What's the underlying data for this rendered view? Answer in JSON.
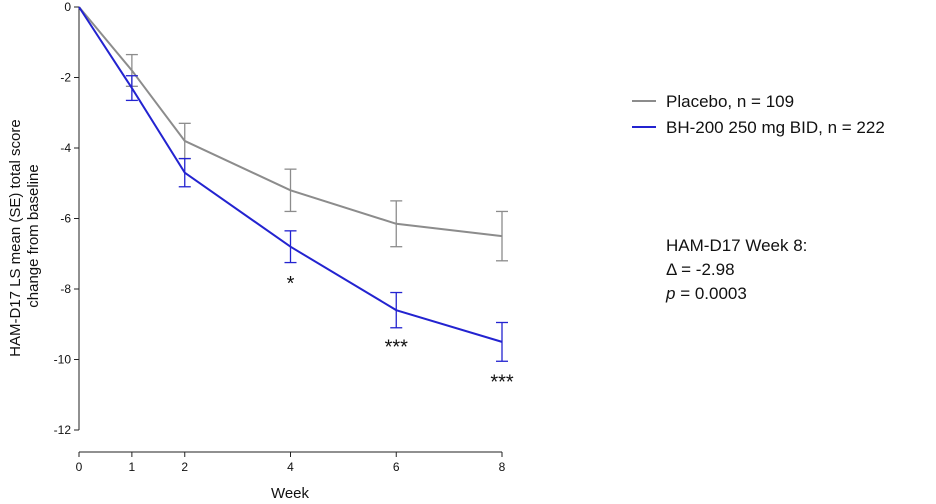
{
  "chart_data": {
    "type": "line",
    "title": "",
    "xlabel": "Week",
    "ylabel_lines": [
      "HAM-D17 LS mean (SE) total score",
      "change from baseline"
    ],
    "xlim": [
      0,
      8
    ],
    "ylim": [
      -12,
      0
    ],
    "x_ticks": [
      0,
      1,
      2,
      4,
      6,
      8
    ],
    "y_ticks": [
      0,
      -2,
      -4,
      -6,
      -8,
      -10,
      -12
    ],
    "grid": false,
    "legend_position": "top-right",
    "series": [
      {
        "name": "Placebo, n = 109",
        "color": "#8c8c8c",
        "x": [
          0,
          1,
          2,
          4,
          6,
          8
        ],
        "y": [
          0,
          -1.8,
          -3.8,
          -5.2,
          -6.15,
          -6.5
        ],
        "se": [
          0,
          0.45,
          0.5,
          0.6,
          0.65,
          0.7
        ]
      },
      {
        "name": "BH-200 250 mg BID, n = 222",
        "color": "#2323d0",
        "x": [
          0,
          1,
          2,
          4,
          6,
          8
        ],
        "y": [
          0,
          -2.3,
          -4.7,
          -6.8,
          -8.6,
          -9.5
        ],
        "se": [
          0,
          0.35,
          0.4,
          0.45,
          0.5,
          0.55
        ]
      }
    ],
    "significance": [
      {
        "x": 4,
        "y": -7.8,
        "label": "*"
      },
      {
        "x": 6,
        "y": -9.6,
        "label": "***"
      },
      {
        "x": 8,
        "y": -10.6,
        "label": "***"
      }
    ],
    "annotation": {
      "line1": "HAM-D17 Week 8:",
      "line2": "Δ = -2.98",
      "p_symbol": "p",
      "p_rest": " = 0.0003"
    }
  }
}
